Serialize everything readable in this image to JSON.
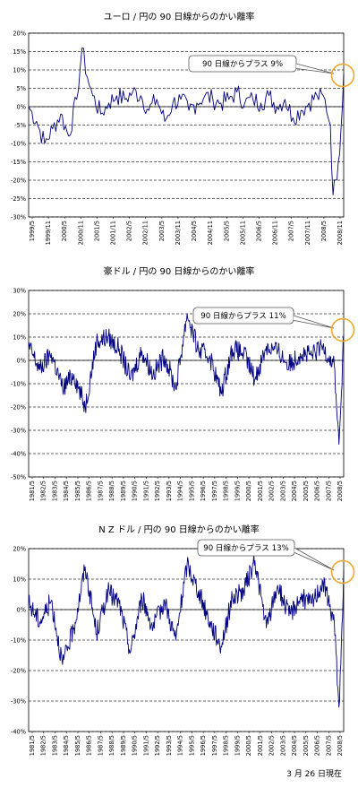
{
  "footer": "3 月 26 日現在",
  "colors": {
    "line": "#000080",
    "callout_circle": "#f0a830",
    "grid": "#333333"
  },
  "chart_data": [
    {
      "type": "line",
      "title": "ユーロ / 円の 90 日線からのかい離率",
      "callout": "90 日線からプラス 9%",
      "ylim": [
        -30,
        20
      ],
      "yticks": [
        "20%",
        "15%",
        "10%",
        "5%",
        "0%",
        "-5%",
        "-10%",
        "-15%",
        "-20%",
        "-25%",
        "-30%"
      ],
      "xticks": [
        "1999/5",
        "1999/11",
        "2000/5",
        "2000/11",
        "2001/5",
        "2001/11",
        "2002/5",
        "2002/11",
        "2003/5",
        "2003/11",
        "2004/5",
        "2004/11",
        "2005/5",
        "2005/11",
        "2006/5",
        "2006/11",
        "2007/5",
        "2007/11",
        "2008/5",
        "2008/11"
      ],
      "x": [
        "1999/5",
        "1999/8",
        "1999/11",
        "2000/2",
        "2000/5",
        "2000/8",
        "2000/11",
        "2001/1",
        "2001/3",
        "2001/5",
        "2001/8",
        "2001/11",
        "2002/2",
        "2002/5",
        "2002/8",
        "2002/11",
        "2003/2",
        "2003/5",
        "2003/8",
        "2003/11",
        "2004/2",
        "2004/5",
        "2004/8",
        "2004/11",
        "2005/2",
        "2005/5",
        "2005/8",
        "2005/11",
        "2006/2",
        "2006/5",
        "2006/8",
        "2006/11",
        "2007/2",
        "2007/5",
        "2007/8",
        "2007/11",
        "2008/2",
        "2008/5",
        "2008/8",
        "2008/10",
        "2008/11",
        "2008/12",
        "2009/1",
        "2009/2",
        "2009/3"
      ],
      "values": [
        0,
        -4,
        -10,
        -6,
        -2,
        -8,
        2,
        16,
        8,
        3,
        -2,
        1,
        3,
        2,
        4,
        3,
        -1,
        2,
        -4,
        1,
        2,
        -1,
        1,
        3,
        2,
        1,
        2,
        4,
        1,
        2,
        1,
        3,
        0,
        2,
        -3,
        -1,
        1,
        3,
        2,
        -5,
        -24,
        -20,
        -15,
        -6,
        9
      ]
    },
    {
      "type": "line",
      "title": "豪ドル / 円の 90 日線からのかい離率",
      "callout": "90 日線からプラス 11%",
      "ylim": [
        -50,
        30
      ],
      "yticks": [
        "30%",
        "20%",
        "10%",
        "0%",
        "-10%",
        "-20%",
        "-30%",
        "-40%",
        "-50%"
      ],
      "xticks": [
        "1981/5",
        "1982/5",
        "1983/5",
        "1984/5",
        "1985/5",
        "1986/5",
        "1987/5",
        "1988/5",
        "1989/5",
        "1990/5",
        "1991/5",
        "1992/5",
        "1993/5",
        "1994/5",
        "1995/5",
        "1996/5",
        "1997/5",
        "1998/5",
        "1999/5",
        "2000/5",
        "2001/5",
        "2002/5",
        "2003/5",
        "2004/5",
        "2005/5",
        "2006/5",
        "2007/5",
        "2008/5"
      ],
      "x": [
        "1981/5",
        "1982/5",
        "1983/5",
        "1984/5",
        "1985/5",
        "1986/5",
        "1987/5",
        "1988/5",
        "1989/5",
        "1990/5",
        "1991/5",
        "1992/5",
        "1993/5",
        "1994/5",
        "1995/5",
        "1996/5",
        "1997/5",
        "1998/5",
        "1999/5",
        "2000/5",
        "2001/5",
        "2002/5",
        "2003/5",
        "2004/5",
        "2005/5",
        "2006/5",
        "2007/5",
        "2008/5",
        "2008/10",
        "2008/12",
        "2009/3"
      ],
      "values": [
        6,
        -4,
        3,
        -12,
        -6,
        -20,
        8,
        10,
        5,
        -8,
        4,
        -6,
        2,
        -12,
        20,
        4,
        2,
        -14,
        5,
        3,
        -8,
        6,
        4,
        -2,
        3,
        2,
        6,
        -2,
        -36,
        -20,
        11
      ]
    },
    {
      "type": "line",
      "title": "N Z ドル / 円の 90 日線からのかい離率",
      "callout": "90 日線からプラス 13%",
      "ylim": [
        -40,
        20
      ],
      "yticks": [
        "20%",
        "10%",
        "0%",
        "-10%",
        "-20%",
        "-30%",
        "-40%"
      ],
      "xticks": [
        "1981/5",
        "1982/5",
        "1983/5",
        "1984/5",
        "1985/5",
        "1986/5",
        "1987/5",
        "1988/5",
        "1989/5",
        "1990/5",
        "1991/5",
        "1992/5",
        "1993/5",
        "1994/5",
        "1995/5",
        "1996/5",
        "1997/5",
        "1998/5",
        "1999/5",
        "2000/5",
        "2001/5",
        "2002/5",
        "2003/5",
        "2004/5",
        "2005/5",
        "2006/5",
        "2007/5",
        "2008/5"
      ],
      "x": [
        "1981/5",
        "1982/5",
        "1983/5",
        "1984/5",
        "1985/5",
        "1986/5",
        "1987/5",
        "1988/5",
        "1989/5",
        "1990/5",
        "1991/5",
        "1992/5",
        "1993/5",
        "1994/5",
        "1995/5",
        "1996/5",
        "1997/5",
        "1998/5",
        "1999/5",
        "2000/5",
        "2001/5",
        "2002/5",
        "2003/5",
        "2004/5",
        "2005/5",
        "2006/5",
        "2007/5",
        "2008/5",
        "2008/10",
        "2008/12",
        "2009/3"
      ],
      "values": [
        2,
        -4,
        3,
        -18,
        -6,
        14,
        -8,
        6,
        2,
        -14,
        4,
        -6,
        3,
        -10,
        15,
        6,
        -4,
        -12,
        4,
        6,
        16,
        -6,
        8,
        -2,
        4,
        2,
        9,
        -4,
        -32,
        -18,
        13
      ]
    }
  ]
}
